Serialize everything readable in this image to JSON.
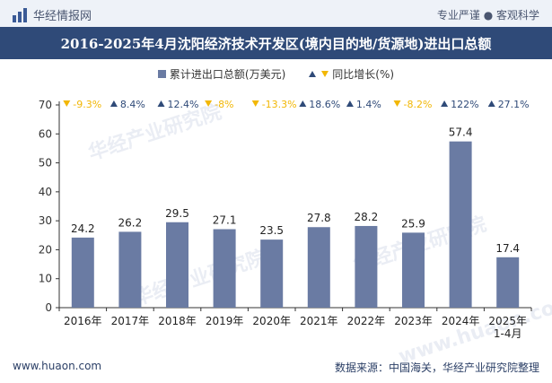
{
  "header": {
    "brand": "华经情报网",
    "tags": "专业严谨 ● 客观科学"
  },
  "chart_data": {
    "type": "bar",
    "title": "2016-2025年4月沈阳经济技术开发区(境内目的地/货源地)进出口总额",
    "categories": [
      "2016年",
      "2017年",
      "2018年",
      "2019年",
      "2020年",
      "2021年",
      "2022年",
      "2023年",
      "2024年",
      "2025年\n1-4月"
    ],
    "series": [
      {
        "name": "累计进出口总额(万美元)",
        "values": [
          24.2,
          26.2,
          29.5,
          27.1,
          23.5,
          27.8,
          28.2,
          25.9,
          57.4,
          17.4
        ],
        "color": "#6a7ba3"
      }
    ],
    "growth": {
      "name": "同比增长(%)",
      "labels": [
        "-9.3%",
        "8.4%",
        "12.4%",
        "-8%",
        "-13.3%",
        "18.6%",
        "1.4%",
        "-8.2%",
        "122%",
        "27.1%"
      ],
      "values": [
        -9.3,
        8.4,
        12.4,
        -8,
        -13.3,
        18.6,
        1.4,
        -8.2,
        122,
        27.1
      ],
      "up_color": "#2f4a78",
      "down_color": "#f2b705"
    },
    "ylim": [
      0,
      70
    ],
    "yticks": [
      0,
      10,
      20,
      30,
      40,
      50,
      60,
      70
    ],
    "grid": false,
    "legend": "top-center"
  },
  "footer": {
    "website": "www.huaon.com",
    "source": "数据来源：中国海关，华经产业研究院整理"
  },
  "watermark": {
    "text": "华经产业研究院",
    "url": "www.huaon.com"
  }
}
